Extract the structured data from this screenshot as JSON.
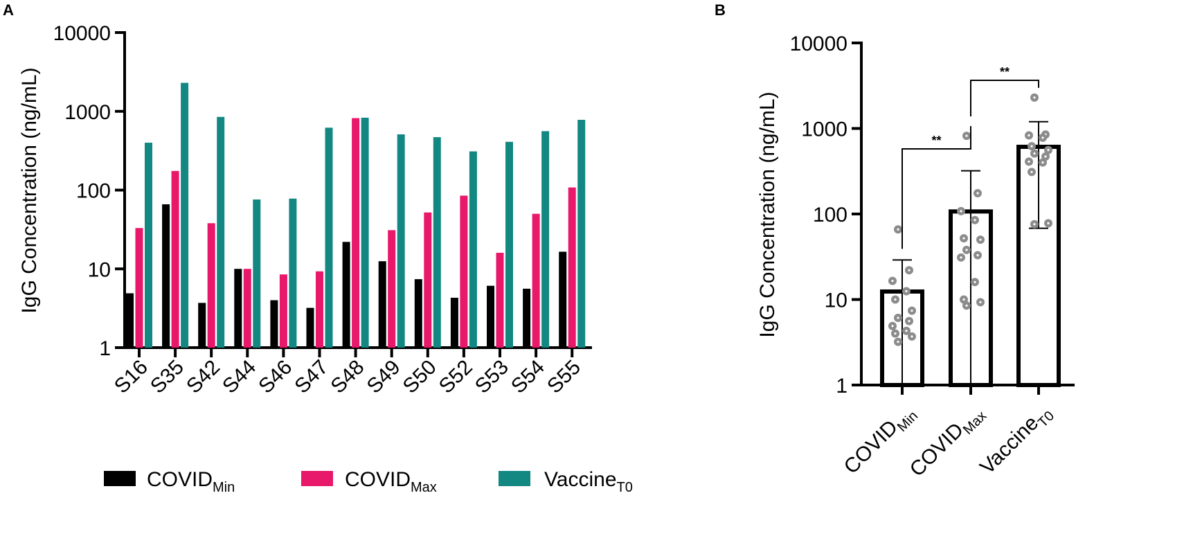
{
  "panels": {
    "a_letter": "A",
    "b_letter": "B"
  },
  "colors": {
    "covid_min": "#000000",
    "covid_max": "#E8186A",
    "vaccine_t0": "#138882",
    "point": "#8C8C8C"
  },
  "legend": {
    "items": [
      {
        "key": "covid_min",
        "base": "COVID",
        "sub": "Min"
      },
      {
        "key": "covid_max",
        "base": "COVID",
        "sub": "Max"
      },
      {
        "key": "vaccine_t0",
        "base": "Vaccine",
        "sub": "T0"
      }
    ]
  },
  "chart_data": [
    {
      "id": "A",
      "type": "bar",
      "scale": "log",
      "title": "",
      "ylabel": "IgG Concentration (ng/mL)",
      "xlabel": "",
      "ylim": [
        1,
        10000
      ],
      "yticks": [
        "1",
        "10",
        "100",
        "1000",
        "10000"
      ],
      "categories": [
        "S16",
        "S35",
        "S42",
        "S44",
        "S46",
        "S47",
        "S48",
        "S49",
        "S50",
        "S52",
        "S53",
        "S54",
        "S55"
      ],
      "series": [
        {
          "name": "COVIDMin",
          "color_key": "covid_min",
          "values": [
            4.9,
            66,
            3.7,
            10,
            4.0,
            3.2,
            22,
            12.5,
            7.4,
            4.3,
            6.1,
            5.6,
            16.5
          ]
        },
        {
          "name": "COVIDMax",
          "color_key": "covid_max",
          "values": [
            33,
            175,
            38,
            10,
            8.5,
            9.3,
            820,
            31,
            52,
            85,
            16,
            50,
            108
          ]
        },
        {
          "name": "VaccineT0",
          "color_key": "vaccine_t0",
          "values": [
            400,
            2300,
            850,
            76,
            78,
            620,
            830,
            510,
            470,
            310,
            410,
            560,
            780
          ]
        }
      ]
    },
    {
      "id": "B",
      "type": "bar",
      "scale": "log",
      "title": "",
      "ylabel": "IgG Concentration (ng/mL)",
      "xlabel": "",
      "ylim": [
        1,
        10000
      ],
      "yticks": [
        "1",
        "10",
        "100",
        "1000",
        "10000"
      ],
      "categories": [
        {
          "base": "COVID",
          "sub": "Min"
        },
        {
          "base": "COVID",
          "sub": "Max"
        },
        {
          "base": "Vaccine",
          "sub": "T0"
        }
      ],
      "values": [
        12.4,
        107,
        610
      ],
      "error_upper": [
        29,
        320,
        1200
      ],
      "error_lower": [
        1,
        1,
        68
      ],
      "points": [
        [
          66,
          22,
          16.5,
          12.5,
          10,
          7.4,
          6.1,
          5.6,
          4.9,
          4.3,
          4.0,
          3.7,
          3.2
        ],
        [
          820,
          175,
          108,
          85,
          52,
          50,
          38,
          33,
          31,
          16,
          10,
          9.3,
          8.5
        ],
        [
          2300,
          850,
          830,
          780,
          620,
          560,
          510,
          470,
          410,
          400,
          310,
          78,
          76
        ]
      ],
      "significance": [
        {
          "from": 0,
          "to": 1,
          "label": "**"
        },
        {
          "from": 1,
          "to": 2,
          "label": "**"
        }
      ]
    }
  ]
}
